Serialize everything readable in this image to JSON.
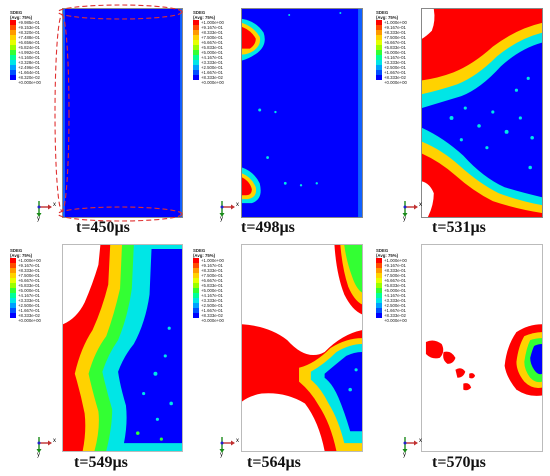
{
  "legend": {
    "title": "SDEG",
    "subtitle": "(Avg: 75%)",
    "colors": [
      "#ff0000",
      "#ff4c00",
      "#ff9900",
      "#ffd200",
      "#e6ff00",
      "#99ff00",
      "#33ff33",
      "#00ff99",
      "#00e6e6",
      "#00a0ff",
      "#0050ff",
      "#0000ff"
    ]
  },
  "axis": {
    "x_label": "x",
    "y_label": "y"
  },
  "panels": [
    {
      "time_label": "t=450µs",
      "legend_values": [
        "+9.985e-01",
        "+9.153e-01",
        "+8.320e-01",
        "+7.488e-01",
        "+6.656e-01",
        "+5.824e-01",
        "+4.992e-01",
        "+4.160e-01",
        "+3.328e-01",
        "+2.496e-01",
        "+1.664e-01",
        "+8.320e-02",
        "+0.000e+00"
      ]
    },
    {
      "time_label": "t=498µs",
      "legend_values": [
        "+1.000e+00",
        "+9.167e-01",
        "+8.333e-01",
        "+7.500e-01",
        "+6.667e-01",
        "+5.833e-01",
        "+5.000e-01",
        "+4.167e-01",
        "+3.333e-01",
        "+2.500e-01",
        "+1.667e-01",
        "+8.333e-02",
        "+0.000e+00"
      ]
    },
    {
      "time_label": "t=531µs",
      "legend_values": [
        "+1.000e+00",
        "+9.167e-01",
        "+8.333e-01",
        "+7.500e-01",
        "+6.667e-01",
        "+5.833e-01",
        "+5.000e-01",
        "+4.167e-01",
        "+3.333e-01",
        "+2.500e-01",
        "+1.667e-01",
        "+8.333e-02",
        "+0.000e+00"
      ]
    },
    {
      "time_label": "t=549µs",
      "legend_values": [
        "+1.000e+00",
        "+9.167e-01",
        "+8.333e-01",
        "+7.500e-01",
        "+6.667e-01",
        "+5.833e-01",
        "+5.000e-01",
        "+4.167e-01",
        "+3.333e-01",
        "+2.500e-01",
        "+1.667e-01",
        "+8.333e-02",
        "+0.000e+00"
      ]
    },
    {
      "time_label": "t=564µs",
      "legend_values": [
        "+1.000e+00",
        "+9.167e-01",
        "+8.333e-01",
        "+7.500e-01",
        "+6.667e-01",
        "+5.833e-01",
        "+5.000e-01",
        "+4.167e-01",
        "+3.333e-01",
        "+2.500e-01",
        "+1.667e-01",
        "+8.333e-02",
        "+0.000e+00"
      ]
    },
    {
      "time_label": "t=570µs",
      "legend_values": [
        "+1.000e+00",
        "+9.167e-01",
        "+8.333e-01",
        "+7.500e-01",
        "+6.667e-01",
        "+5.833e-01",
        "+5.000e-01",
        "+4.167e-01",
        "+3.333e-01",
        "+2.500e-01",
        "+1.667e-01",
        "+8.333e-02",
        "+0.000e+00"
      ]
    }
  ]
}
